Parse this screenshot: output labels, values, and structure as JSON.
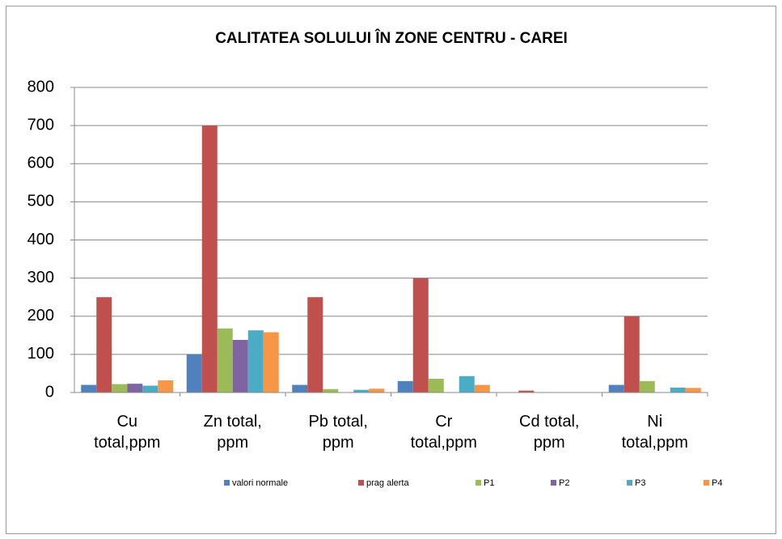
{
  "chart_data": {
    "type": "bar",
    "title": "CALITATEA SOLULUI ÎN ZONE CENTRU - CAREI",
    "categories": [
      "Cu total,ppm",
      "Zn total, ppm",
      "Pb total, ppm",
      "Cr total,ppm",
      "Cd total, ppm",
      "Ni total,ppm"
    ],
    "series": [
      {
        "name": "valori normale",
        "color": "#4f81bd",
        "values": [
          20,
          100,
          20,
          30,
          1,
          20
        ]
      },
      {
        "name": "prag alerta",
        "color": "#c0504d",
        "values": [
          250,
          700,
          250,
          300,
          5,
          200
        ]
      },
      {
        "name": "P1",
        "color": "#9bbb59",
        "values": [
          22,
          168,
          9,
          36,
          0.5,
          30
        ]
      },
      {
        "name": "P2",
        "color": "#8064a2",
        "values": [
          23,
          138,
          0,
          0,
          0.5,
          0
        ]
      },
      {
        "name": "P3",
        "color": "#4bacc6",
        "values": [
          18,
          163,
          7,
          43,
          0.5,
          13
        ]
      },
      {
        "name": "P4",
        "color": "#f79646",
        "values": [
          32,
          158,
          10,
          20,
          0.5,
          12
        ]
      }
    ],
    "ylim": [
      0,
      800
    ],
    "yticks": [
      0,
      100,
      200,
      300,
      400,
      500,
      600,
      700,
      800
    ],
    "grid": true,
    "legend": "bottom"
  }
}
